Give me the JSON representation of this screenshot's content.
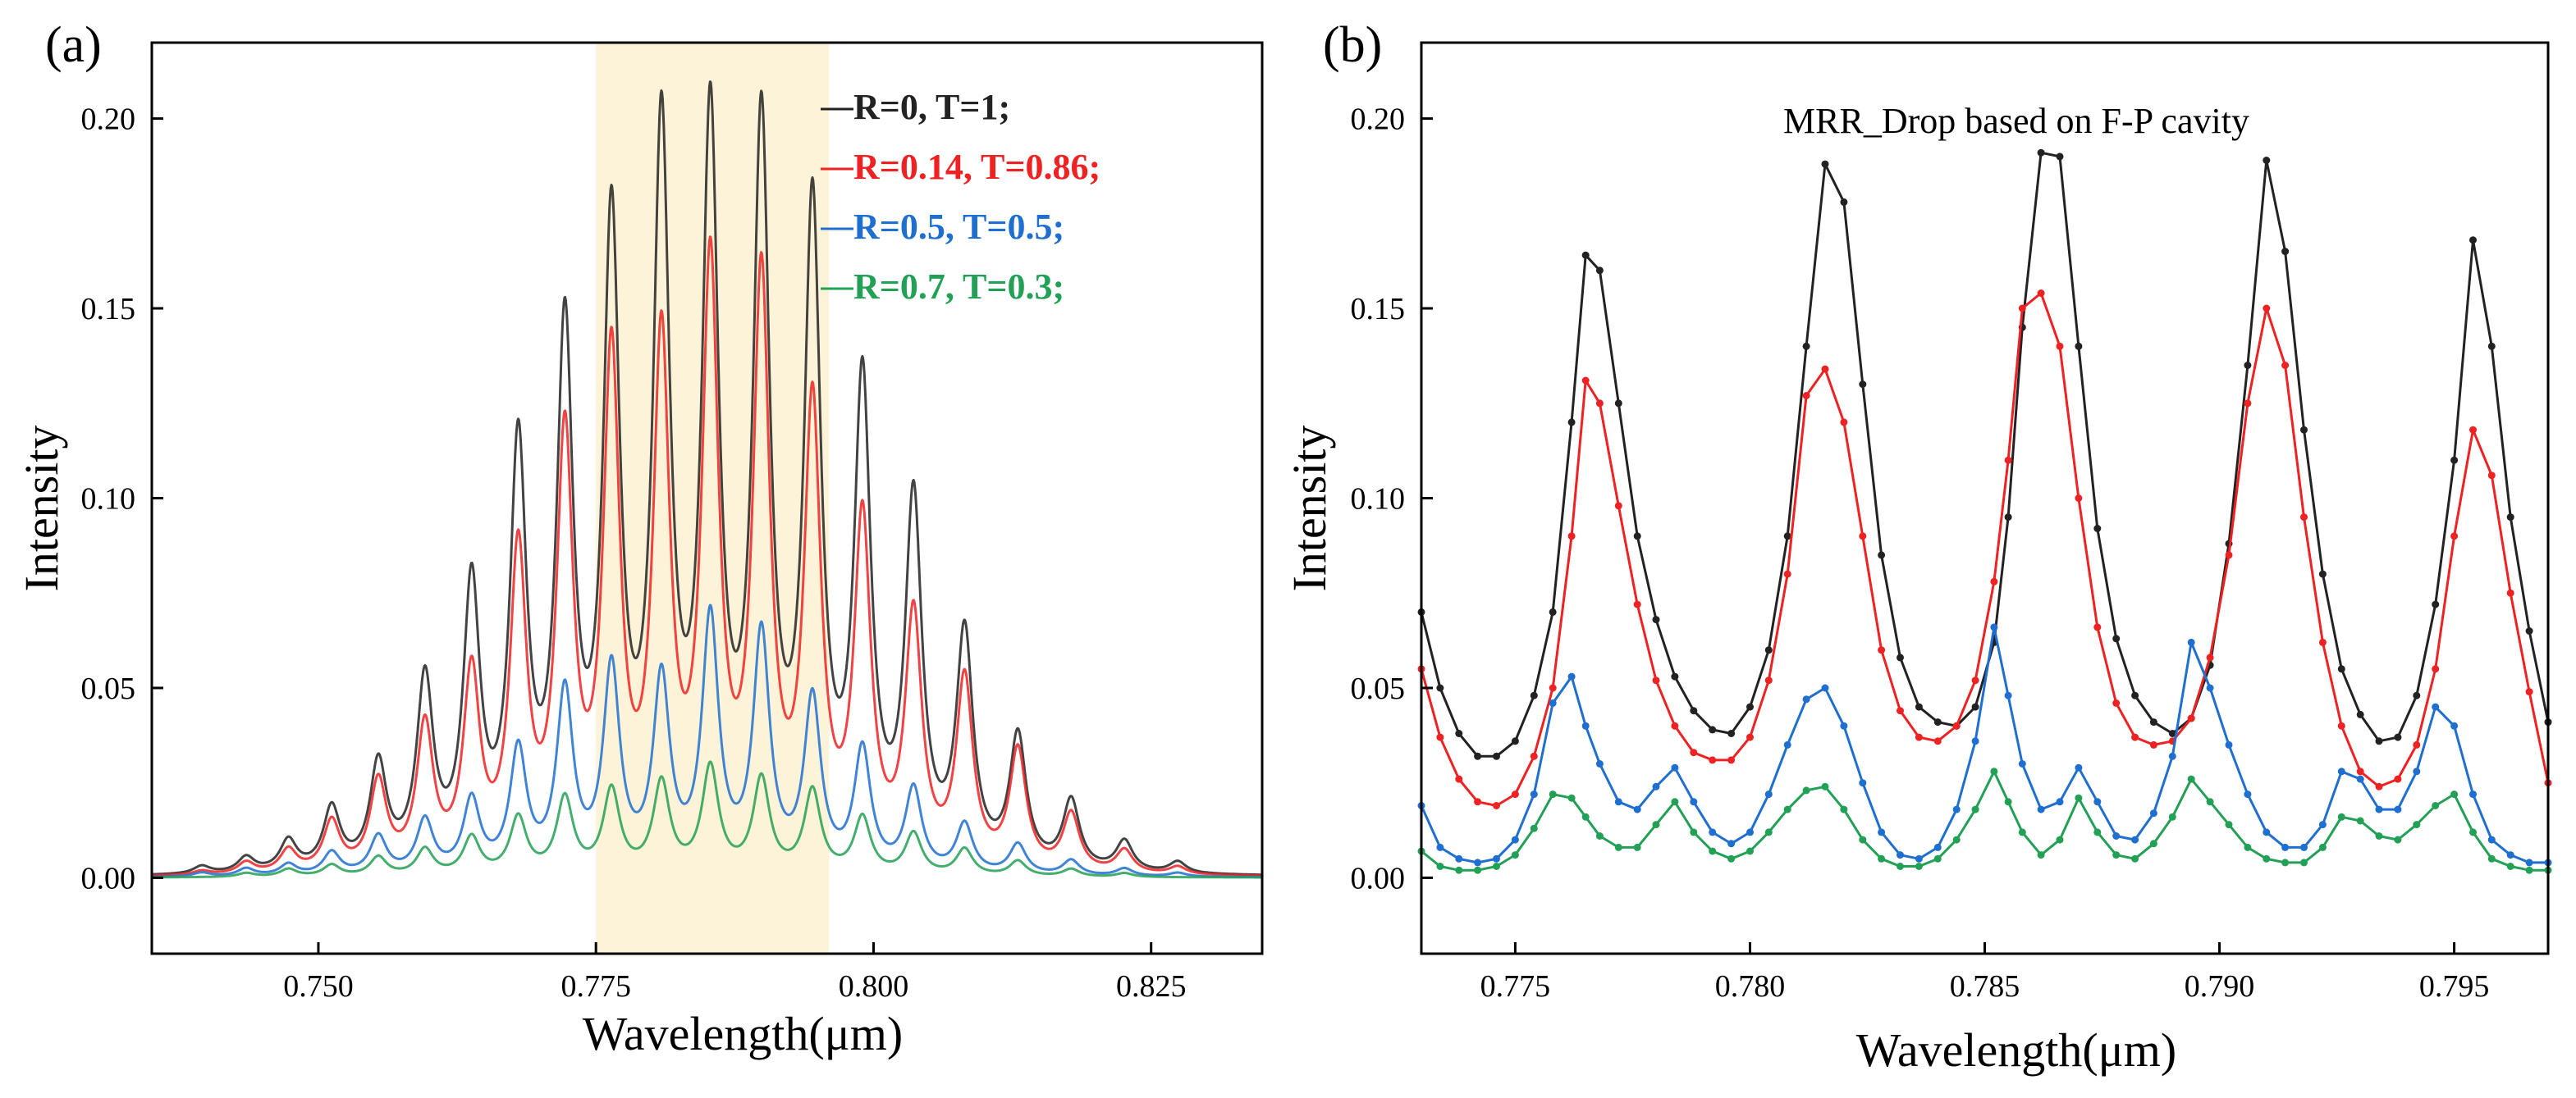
{
  "panels": {
    "a": {
      "letter": "(a)"
    },
    "b": {
      "letter": "(b)"
    }
  },
  "colors": {
    "black": "#222222",
    "red": "#ee2222",
    "blue": "#1f6fd0",
    "green": "#22a055",
    "highlight": "#fdf3d8"
  },
  "chart_data": [
    {
      "type": "line",
      "panel": "(a)",
      "xlabel": "Wavelength(μm)",
      "ylabel": "Intensity",
      "xlim": [
        0.735,
        0.835
      ],
      "ylim": [
        -0.02,
        0.22
      ],
      "xticks": [
        "0.750",
        "0.775",
        "0.800",
        "0.825"
      ],
      "xtick_values": [
        0.75,
        0.775,
        0.8,
        0.825
      ],
      "yticks": [
        "0.00",
        "0.05",
        "0.10",
        "0.15",
        "0.20"
      ],
      "ytick_values": [
        0,
        0.05,
        0.1,
        0.15,
        0.2
      ],
      "highlight_band": [
        0.775,
        0.796
      ],
      "grid": false,
      "legend_placement": "top-right",
      "legend": [
        "R=0, T=1;",
        "R=0.14, T=0.86;",
        "R=0.5, T=0.5;",
        "R=0.7, T=0.3;"
      ],
      "peak_wavelengths": [
        0.7395,
        0.7435,
        0.7473,
        0.7512,
        0.7554,
        0.7596,
        0.7638,
        0.768,
        0.7722,
        0.7764,
        0.7809,
        0.7853,
        0.7899,
        0.7945,
        0.799,
        0.8036,
        0.8082,
        0.813,
        0.8178,
        0.8226,
        0.8274
      ],
      "series": [
        {
          "name": "R=0, T=1;",
          "color_key": "black",
          "baseline": 0.0,
          "peaks": [
            0.002,
            0.004,
            0.008,
            0.016,
            0.027,
            0.048,
            0.072,
            0.107,
            0.136,
            0.164,
            0.188,
            0.19,
            0.189,
            0.168,
            0.123,
            0.094,
            0.06,
            0.034,
            0.018,
            0.008,
            0.003
          ]
        },
        {
          "name": "R=0.14, T=0.86;",
          "color_key": "red",
          "baseline": 0.0,
          "peaks": [
            0.001,
            0.003,
            0.006,
            0.013,
            0.023,
            0.037,
            0.05,
            0.081,
            0.11,
            0.131,
            0.134,
            0.154,
            0.151,
            0.118,
            0.089,
            0.065,
            0.049,
            0.031,
            0.015,
            0.006,
            0.002
          ]
        },
        {
          "name": "R=0.5, T=0.5;",
          "color_key": "blue",
          "baseline": 0.0,
          "peaks": [
            0.001,
            0.002,
            0.003,
            0.006,
            0.01,
            0.014,
            0.019,
            0.032,
            0.047,
            0.053,
            0.05,
            0.066,
            0.062,
            0.045,
            0.032,
            0.022,
            0.013,
            0.008,
            0.004,
            0.002,
            0.001
          ]
        },
        {
          "name": "R=0.7, T=0.3;",
          "color_key": "green",
          "baseline": 0.0,
          "peaks": [
            0.0,
            0.001,
            0.002,
            0.003,
            0.005,
            0.007,
            0.01,
            0.015,
            0.02,
            0.022,
            0.024,
            0.028,
            0.025,
            0.022,
            0.015,
            0.011,
            0.007,
            0.004,
            0.002,
            0.001,
            0.0
          ]
        }
      ]
    },
    {
      "type": "line",
      "panel": "(b)",
      "title": "MRR_Drop based on F-P cavity",
      "xlabel": "Wavelength(μm)",
      "ylabel": "Intensity",
      "xlim": [
        0.773,
        0.797
      ],
      "ylim": [
        -0.02,
        0.22
      ],
      "xticks": [
        "0.775",
        "0.780",
        "0.785",
        "0.790",
        "0.795"
      ],
      "xtick_values": [
        0.775,
        0.78,
        0.785,
        0.79,
        0.795
      ],
      "yticks": [
        "0.00",
        "0.05",
        "0.10",
        "0.15",
        "0.20"
      ],
      "ytick_values": [
        0,
        0.05,
        0.1,
        0.15,
        0.2
      ],
      "grid": false,
      "markers": true,
      "series": [
        {
          "name": "R=0, T=1;",
          "color_key": "black",
          "x": [
            0.773,
            0.7734,
            0.7738,
            0.7742,
            0.7746,
            0.775,
            0.7754,
            0.7758,
            0.7762,
            0.7765,
            0.7768,
            0.7772,
            0.7776,
            0.778,
            0.7784,
            0.7788,
            0.7792,
            0.7796,
            0.78,
            0.7804,
            0.7808,
            0.7812,
            0.7816,
            0.782,
            0.7824,
            0.7828,
            0.7832,
            0.7836,
            0.784,
            0.7844,
            0.7848,
            0.7852,
            0.7855,
            0.7858,
            0.7862,
            0.7866,
            0.787,
            0.7874,
            0.7878,
            0.7882,
            0.7886,
            0.789,
            0.7894,
            0.7898,
            0.7902,
            0.7906,
            0.791,
            0.7914,
            0.7918,
            0.7922,
            0.7926,
            0.793,
            0.7934,
            0.7938,
            0.7942,
            0.7946,
            0.795,
            0.7954,
            0.7958,
            0.7962,
            0.7966,
            0.797
          ],
          "y": [
            0.07,
            0.05,
            0.038,
            0.032,
            0.032,
            0.036,
            0.048,
            0.07,
            0.12,
            0.164,
            0.16,
            0.125,
            0.09,
            0.068,
            0.053,
            0.044,
            0.039,
            0.038,
            0.045,
            0.06,
            0.09,
            0.14,
            0.188,
            0.178,
            0.13,
            0.085,
            0.058,
            0.045,
            0.041,
            0.04,
            0.045,
            0.062,
            0.095,
            0.145,
            0.191,
            0.19,
            0.14,
            0.092,
            0.063,
            0.048,
            0.041,
            0.038,
            0.042,
            0.056,
            0.088,
            0.135,
            0.189,
            0.165,
            0.118,
            0.08,
            0.055,
            0.043,
            0.036,
            0.037,
            0.048,
            0.072,
            0.11,
            0.168,
            0.14,
            0.095,
            0.065,
            0.041
          ]
        },
        {
          "name": "R=0.14, T=0.86;",
          "color_key": "red",
          "x": [
            0.773,
            0.7734,
            0.7738,
            0.7742,
            0.7746,
            0.775,
            0.7754,
            0.7758,
            0.7762,
            0.7765,
            0.7768,
            0.7772,
            0.7776,
            0.778,
            0.7784,
            0.7788,
            0.7792,
            0.7796,
            0.78,
            0.7804,
            0.7808,
            0.7812,
            0.7816,
            0.782,
            0.7824,
            0.7828,
            0.7832,
            0.7836,
            0.784,
            0.7844,
            0.7848,
            0.7852,
            0.7855,
            0.7858,
            0.7862,
            0.7866,
            0.787,
            0.7874,
            0.7878,
            0.7882,
            0.7886,
            0.789,
            0.7894,
            0.7898,
            0.7902,
            0.7906,
            0.791,
            0.7914,
            0.7918,
            0.7922,
            0.7926,
            0.793,
            0.7934,
            0.7938,
            0.7942,
            0.7946,
            0.795,
            0.7954,
            0.7958,
            0.7962,
            0.7966,
            0.797
          ],
          "y": [
            0.055,
            0.037,
            0.026,
            0.02,
            0.019,
            0.022,
            0.032,
            0.05,
            0.09,
            0.131,
            0.125,
            0.098,
            0.072,
            0.052,
            0.04,
            0.033,
            0.031,
            0.031,
            0.037,
            0.052,
            0.08,
            0.127,
            0.134,
            0.12,
            0.09,
            0.06,
            0.044,
            0.037,
            0.036,
            0.04,
            0.052,
            0.078,
            0.11,
            0.15,
            0.154,
            0.14,
            0.1,
            0.066,
            0.046,
            0.037,
            0.035,
            0.036,
            0.042,
            0.058,
            0.085,
            0.125,
            0.15,
            0.135,
            0.095,
            0.062,
            0.04,
            0.028,
            0.024,
            0.026,
            0.035,
            0.055,
            0.09,
            0.118,
            0.106,
            0.075,
            0.049,
            0.025
          ]
        },
        {
          "name": "R=0.5, T=0.5;",
          "color_key": "blue",
          "x": [
            0.773,
            0.7734,
            0.7738,
            0.7742,
            0.7746,
            0.775,
            0.7754,
            0.7758,
            0.7762,
            0.7765,
            0.7768,
            0.7772,
            0.7776,
            0.778,
            0.7784,
            0.7788,
            0.7792,
            0.7796,
            0.78,
            0.7804,
            0.7808,
            0.7812,
            0.7816,
            0.782,
            0.7824,
            0.7828,
            0.7832,
            0.7836,
            0.784,
            0.7844,
            0.7848,
            0.7852,
            0.7855,
            0.7858,
            0.7862,
            0.7866,
            0.787,
            0.7874,
            0.7878,
            0.7882,
            0.7886,
            0.789,
            0.7894,
            0.7898,
            0.7902,
            0.7906,
            0.791,
            0.7914,
            0.7918,
            0.7922,
            0.7926,
            0.793,
            0.7934,
            0.7938,
            0.7942,
            0.7946,
            0.795,
            0.7954,
            0.7958,
            0.7962,
            0.7966,
            0.797
          ],
          "y": [
            0.019,
            0.008,
            0.005,
            0.004,
            0.005,
            0.01,
            0.022,
            0.046,
            0.053,
            0.04,
            0.03,
            0.02,
            0.018,
            0.024,
            0.029,
            0.02,
            0.012,
            0.009,
            0.012,
            0.022,
            0.035,
            0.047,
            0.05,
            0.04,
            0.025,
            0.012,
            0.006,
            0.005,
            0.008,
            0.018,
            0.036,
            0.066,
            0.048,
            0.03,
            0.018,
            0.02,
            0.029,
            0.02,
            0.011,
            0.01,
            0.017,
            0.032,
            0.062,
            0.05,
            0.035,
            0.022,
            0.012,
            0.008,
            0.008,
            0.014,
            0.028,
            0.026,
            0.018,
            0.018,
            0.028,
            0.045,
            0.04,
            0.022,
            0.01,
            0.006,
            0.004,
            0.004
          ]
        },
        {
          "name": "R=0.7, T=0.3;",
          "color_key": "green",
          "x": [
            0.773,
            0.7734,
            0.7738,
            0.7742,
            0.7746,
            0.775,
            0.7754,
            0.7758,
            0.7762,
            0.7765,
            0.7768,
            0.7772,
            0.7776,
            0.778,
            0.7784,
            0.7788,
            0.7792,
            0.7796,
            0.78,
            0.7804,
            0.7808,
            0.7812,
            0.7816,
            0.782,
            0.7824,
            0.7828,
            0.7832,
            0.7836,
            0.784,
            0.7844,
            0.7848,
            0.7852,
            0.7855,
            0.7858,
            0.7862,
            0.7866,
            0.787,
            0.7874,
            0.7878,
            0.7882,
            0.7886,
            0.789,
            0.7894,
            0.7898,
            0.7902,
            0.7906,
            0.791,
            0.7914,
            0.7918,
            0.7922,
            0.7926,
            0.793,
            0.7934,
            0.7938,
            0.7942,
            0.7946,
            0.795,
            0.7954,
            0.7958,
            0.7962,
            0.7966,
            0.797
          ],
          "y": [
            0.007,
            0.003,
            0.002,
            0.002,
            0.003,
            0.006,
            0.013,
            0.022,
            0.021,
            0.016,
            0.011,
            0.008,
            0.008,
            0.014,
            0.02,
            0.012,
            0.007,
            0.005,
            0.007,
            0.012,
            0.018,
            0.023,
            0.024,
            0.018,
            0.01,
            0.005,
            0.003,
            0.003,
            0.005,
            0.01,
            0.018,
            0.028,
            0.02,
            0.012,
            0.006,
            0.01,
            0.021,
            0.012,
            0.006,
            0.005,
            0.009,
            0.016,
            0.026,
            0.02,
            0.014,
            0.008,
            0.005,
            0.004,
            0.004,
            0.008,
            0.016,
            0.015,
            0.011,
            0.01,
            0.014,
            0.019,
            0.022,
            0.012,
            0.005,
            0.003,
            0.002,
            0.002
          ]
        }
      ]
    }
  ]
}
